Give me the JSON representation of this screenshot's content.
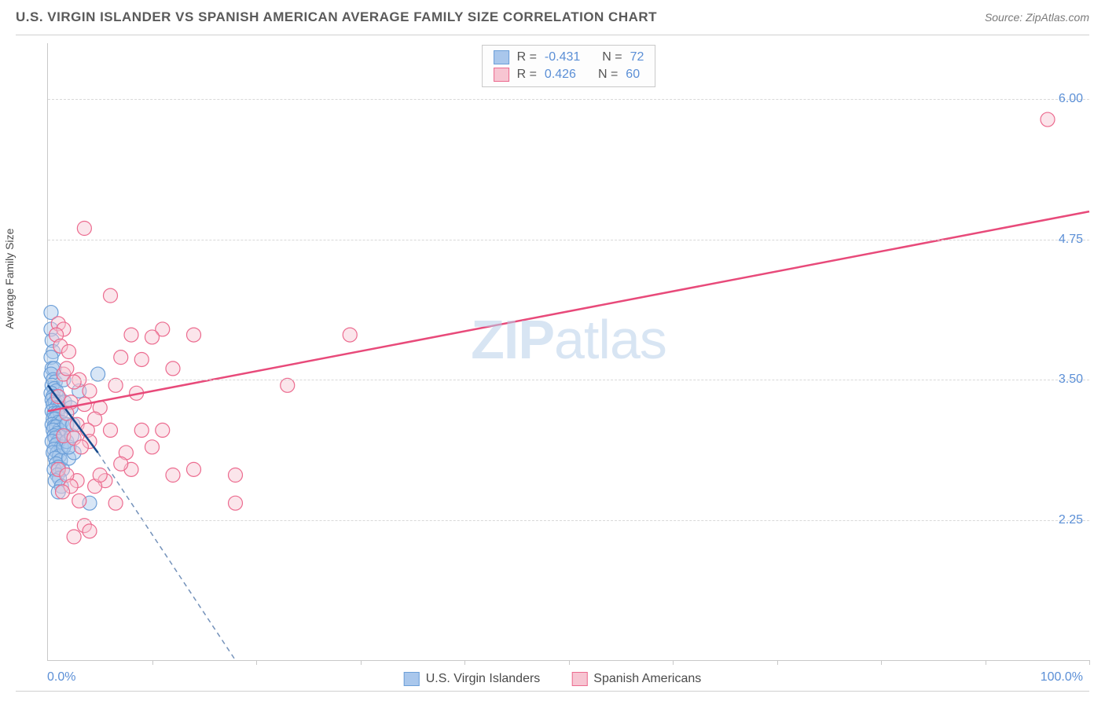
{
  "title": "U.S. VIRGIN ISLANDER VS SPANISH AMERICAN AVERAGE FAMILY SIZE CORRELATION CHART",
  "source": "Source: ZipAtlas.com",
  "watermark_zip": "ZIP",
  "watermark_atlas": "atlas",
  "chart": {
    "type": "scatter",
    "ylabel": "Average Family Size",
    "xlim": [
      0,
      100
    ],
    "ylim": [
      1.0,
      6.5
    ],
    "x_min_label": "0.0%",
    "x_max_label": "100.0%",
    "yticks": [
      {
        "v": 2.25,
        "label": "2.25"
      },
      {
        "v": 3.5,
        "label": "3.50"
      },
      {
        "v": 4.75,
        "label": "4.75"
      },
      {
        "v": 6.0,
        "label": "6.00"
      }
    ],
    "xticks_pct": [
      10,
      20,
      30,
      40,
      50,
      60,
      70,
      80,
      90,
      100
    ],
    "grid_color": "#d8d8d8",
    "background_color": "#ffffff",
    "marker_radius": 9,
    "marker_opacity": 0.45,
    "series": [
      {
        "name": "U.S. Virgin Islanders",
        "fill": "#a9c7ec",
        "stroke": "#6c9fd8",
        "line_color": "#174a8c",
        "r": "-0.431",
        "n": "72",
        "trend_solid": {
          "x1": 0,
          "y1": 3.45,
          "x2": 4.8,
          "y2": 2.85
        },
        "trend_dashed": {
          "x1": 4.8,
          "y1": 2.85,
          "x2": 18,
          "y2": 1.0
        },
        "points": [
          [
            0.3,
            4.1
          ],
          [
            0.3,
            3.95
          ],
          [
            0.4,
            3.85
          ],
          [
            0.5,
            3.75
          ],
          [
            0.3,
            3.7
          ],
          [
            0.4,
            3.6
          ],
          [
            0.6,
            3.6
          ],
          [
            0.3,
            3.55
          ],
          [
            0.5,
            3.5
          ],
          [
            0.7,
            3.48
          ],
          [
            0.4,
            3.45
          ],
          [
            0.6,
            3.42
          ],
          [
            0.8,
            3.4
          ],
          [
            0.3,
            3.38
          ],
          [
            0.5,
            3.35
          ],
          [
            0.9,
            3.35
          ],
          [
            0.4,
            3.32
          ],
          [
            0.7,
            3.3
          ],
          [
            1.0,
            3.3
          ],
          [
            0.5,
            3.28
          ],
          [
            0.8,
            3.25
          ],
          [
            1.1,
            3.25
          ],
          [
            0.4,
            3.22
          ],
          [
            0.6,
            3.2
          ],
          [
            0.9,
            3.2
          ],
          [
            1.2,
            3.2
          ],
          [
            0.5,
            3.15
          ],
          [
            0.7,
            3.15
          ],
          [
            1.0,
            3.12
          ],
          [
            1.3,
            3.12
          ],
          [
            0.4,
            3.1
          ],
          [
            0.6,
            3.08
          ],
          [
            0.8,
            3.08
          ],
          [
            1.1,
            3.05
          ],
          [
            0.5,
            3.05
          ],
          [
            0.9,
            3.02
          ],
          [
            1.2,
            3.0
          ],
          [
            0.6,
            3.0
          ],
          [
            0.7,
            2.98
          ],
          [
            1.0,
            2.95
          ],
          [
            0.4,
            2.95
          ],
          [
            0.8,
            2.92
          ],
          [
            1.3,
            2.9
          ],
          [
            0.6,
            2.88
          ],
          [
            0.9,
            2.85
          ],
          [
            0.5,
            2.85
          ],
          [
            1.1,
            2.82
          ],
          [
            0.7,
            2.8
          ],
          [
            1.2,
            2.78
          ],
          [
            0.8,
            2.75
          ],
          [
            1.0,
            2.72
          ],
          [
            0.6,
            2.7
          ],
          [
            1.4,
            2.7
          ],
          [
            0.9,
            2.65
          ],
          [
            1.1,
            2.62
          ],
          [
            0.7,
            2.6
          ],
          [
            1.3,
            2.55
          ],
          [
            2.0,
            2.8
          ],
          [
            2.5,
            2.85
          ],
          [
            1.0,
            2.5
          ],
          [
            1.5,
            2.9
          ],
          [
            1.8,
            2.95
          ],
          [
            2.0,
            2.9
          ],
          [
            2.3,
            3.0
          ],
          [
            1.6,
            3.3
          ],
          [
            1.8,
            3.1
          ],
          [
            2.2,
            3.25
          ],
          [
            2.4,
            3.1
          ],
          [
            4.8,
            3.55
          ],
          [
            3.0,
            3.4
          ],
          [
            4.0,
            2.4
          ],
          [
            1.5,
            3.5
          ]
        ]
      },
      {
        "name": "Spanish Americans",
        "fill": "#f7c5d2",
        "stroke": "#ec6b8f",
        "line_color": "#e84a7a",
        "r": "0.426",
        "n": "60",
        "trend_solid": {
          "x1": 0,
          "y1": 3.22,
          "x2": 100,
          "y2": 5.0
        },
        "points": [
          [
            96,
            5.82
          ],
          [
            3.5,
            4.85
          ],
          [
            6.0,
            4.25
          ],
          [
            1.0,
            4.0
          ],
          [
            1.5,
            3.95
          ],
          [
            0.8,
            3.9
          ],
          [
            8.0,
            3.9
          ],
          [
            11,
            3.95
          ],
          [
            14,
            3.9
          ],
          [
            10,
            3.88
          ],
          [
            1.2,
            3.8
          ],
          [
            2.0,
            3.75
          ],
          [
            7.0,
            3.7
          ],
          [
            9.0,
            3.68
          ],
          [
            12,
            3.6
          ],
          [
            1.5,
            3.55
          ],
          [
            3.0,
            3.5
          ],
          [
            2.5,
            3.48
          ],
          [
            6.5,
            3.45
          ],
          [
            4.0,
            3.4
          ],
          [
            8.5,
            3.38
          ],
          [
            23,
            3.45
          ],
          [
            29,
            3.9
          ],
          [
            1.0,
            3.35
          ],
          [
            2.2,
            3.3
          ],
          [
            3.5,
            3.28
          ],
          [
            5.0,
            3.25
          ],
          [
            1.8,
            3.2
          ],
          [
            4.5,
            3.15
          ],
          [
            2.8,
            3.1
          ],
          [
            3.8,
            3.05
          ],
          [
            6.0,
            3.05
          ],
          [
            9.0,
            3.05
          ],
          [
            11,
            3.05
          ],
          [
            1.5,
            3.0
          ],
          [
            2.5,
            2.98
          ],
          [
            4.0,
            2.95
          ],
          [
            3.2,
            2.9
          ],
          [
            7.5,
            2.85
          ],
          [
            14,
            2.7
          ],
          [
            18,
            2.65
          ],
          [
            2.8,
            2.6
          ],
          [
            5.5,
            2.6
          ],
          [
            4.5,
            2.55
          ],
          [
            3.0,
            2.42
          ],
          [
            6.5,
            2.4
          ],
          [
            18,
            2.4
          ],
          [
            3.5,
            2.2
          ],
          [
            4.0,
            2.15
          ],
          [
            2.5,
            2.1
          ],
          [
            5.0,
            2.65
          ],
          [
            8.0,
            2.7
          ],
          [
            12,
            2.65
          ],
          [
            10,
            2.9
          ],
          [
            7.0,
            2.75
          ],
          [
            1.0,
            2.7
          ],
          [
            1.8,
            2.65
          ],
          [
            2.2,
            2.55
          ],
          [
            1.4,
            2.5
          ],
          [
            1.8,
            3.6
          ]
        ]
      }
    ]
  },
  "legend_top": {
    "labels": {
      "r": "R =",
      "n": "N ="
    }
  },
  "legend_bottom": [
    {
      "swatch_fill": "#a9c7ec",
      "swatch_stroke": "#6c9fd8",
      "text": "U.S. Virgin Islanders"
    },
    {
      "swatch_fill": "#f7c5d2",
      "swatch_stroke": "#ec6b8f",
      "text": "Spanish Americans"
    }
  ]
}
